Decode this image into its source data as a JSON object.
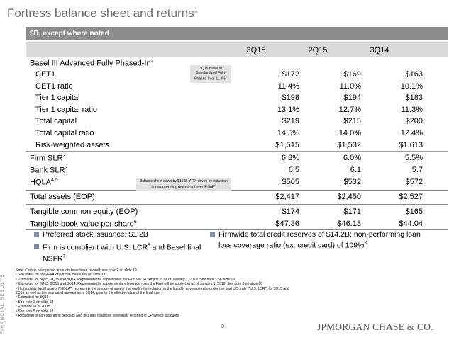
{
  "title": "Fortress balance sheet and returns",
  "title_sup": "1",
  "side_label": "FINANCIAL RESULTS",
  "banner": "$B, except where noted",
  "columns": [
    "3Q15",
    "2Q15",
    "3Q14"
  ],
  "section_basel": {
    "label": "Basel III Advanced Fully Phased-In",
    "sup": "2"
  },
  "basel_rows": [
    {
      "label": "CET1",
      "v": [
        "$172",
        "$169",
        "$163"
      ]
    },
    {
      "label": "CET1 ratio",
      "v": [
        "11.4%",
        "11.0%",
        "10.1%"
      ]
    },
    {
      "label": "Tier 1 capital",
      "v": [
        "$198",
        "$194",
        "$183"
      ]
    },
    {
      "label": "Tier 1 capital ratio",
      "v": [
        "13.1%",
        "12.7%",
        "11.3%"
      ]
    },
    {
      "label": "Total capital",
      "v": [
        "$219",
        "$215",
        "$200"
      ]
    },
    {
      "label": "Total capital ratio",
      "v": [
        "14.5%",
        "14.0%",
        "12.4%"
      ]
    },
    {
      "label": "Risk-weighted assets",
      "v": [
        "$1,515",
        "$1,532",
        "$1,613"
      ]
    }
  ],
  "slr_rows": [
    {
      "label": "Firm SLR",
      "sup": "3",
      "v": [
        "6.3%",
        "6.0%",
        "5.5%"
      ]
    },
    {
      "label": "Bank SLR",
      "sup": "3",
      "v": [
        "6.5",
        "6.1",
        "5.7"
      ]
    },
    {
      "label": "HQLA",
      "sup": "4,5",
      "v": [
        "$505",
        "$532",
        "$572"
      ]
    }
  ],
  "total_assets": {
    "label": "Total assets (EOP)",
    "v": [
      "$2,417",
      "$2,450",
      "$2,527"
    ]
  },
  "tce_rows": [
    {
      "label": "Tangible common equity (EOP)",
      "v": [
        "$174",
        "$171",
        "$165"
      ]
    },
    {
      "label": "Tangible book value per share",
      "sup": "6",
      "v": [
        "$47.36",
        "$46.13",
        "$44.04"
      ]
    }
  ],
  "callout_1": {
    "text": "3Q15 Basel III Standardized Fully Phased-In of 11.4%",
    "sup": "2"
  },
  "callout_2": {
    "text": "Balance sheet down by $156B YTD, driven by reduction in non-operating deposits of over $150B",
    "sup": "9"
  },
  "bullets_left": [
    {
      "text": "Preferred stock issuance: $1.2B"
    },
    {
      "text": "Firm is compliant with U.S. LCR",
      "sup": "5",
      "text2": " and Basel final NSFR",
      "sup2": "7"
    }
  ],
  "bullets_right": [
    {
      "text": "Firmwide total credit reserves of $14.2B; non-performing loan loss coverage ratio (ex. credit card) of 109%",
      "sup": "8"
    }
  ],
  "notes": [
    "Note: Certain prior period amounts have been revised; see note 2 on slide 19",
    "¹ See notes on non-GAAP financial measures on slide 18",
    "² Estimated for 3Q15, 2Q15 and 3Q14. Represents the capital rules the Firm will be subject to as of January 1, 2019. See note 3 on slide 18",
    "³ Estimated for 3Q15, 2Q15 and 3Q14. Represents the supplementary leverage rules the Firm will be subject to as of January 1, 2018. See note 3 on slide 18",
    "⁴ High quality liquid assets (\"HQLA\") represents the amount of assets that qualify for inclusion in the liquidity coverage ratio under the final U.S. rule (\"U.S. LCR\") for 3Q15 and 2Q15 as well as the estimated amount as of 3Q14, prior to the effective date of the final rule",
    "⁵ Estimated for 3Q15",
    "⁶ See note 2 on slide 18",
    "⁷ Estimate as of 2Q15",
    "⁸ See note 5 on slide 18",
    "⁹ Reduction in non-operating deposits also includes balances previously reported in CP sweep accounts"
  ],
  "page_number": "3",
  "logo": "JPMORGAN CHASE & CO."
}
